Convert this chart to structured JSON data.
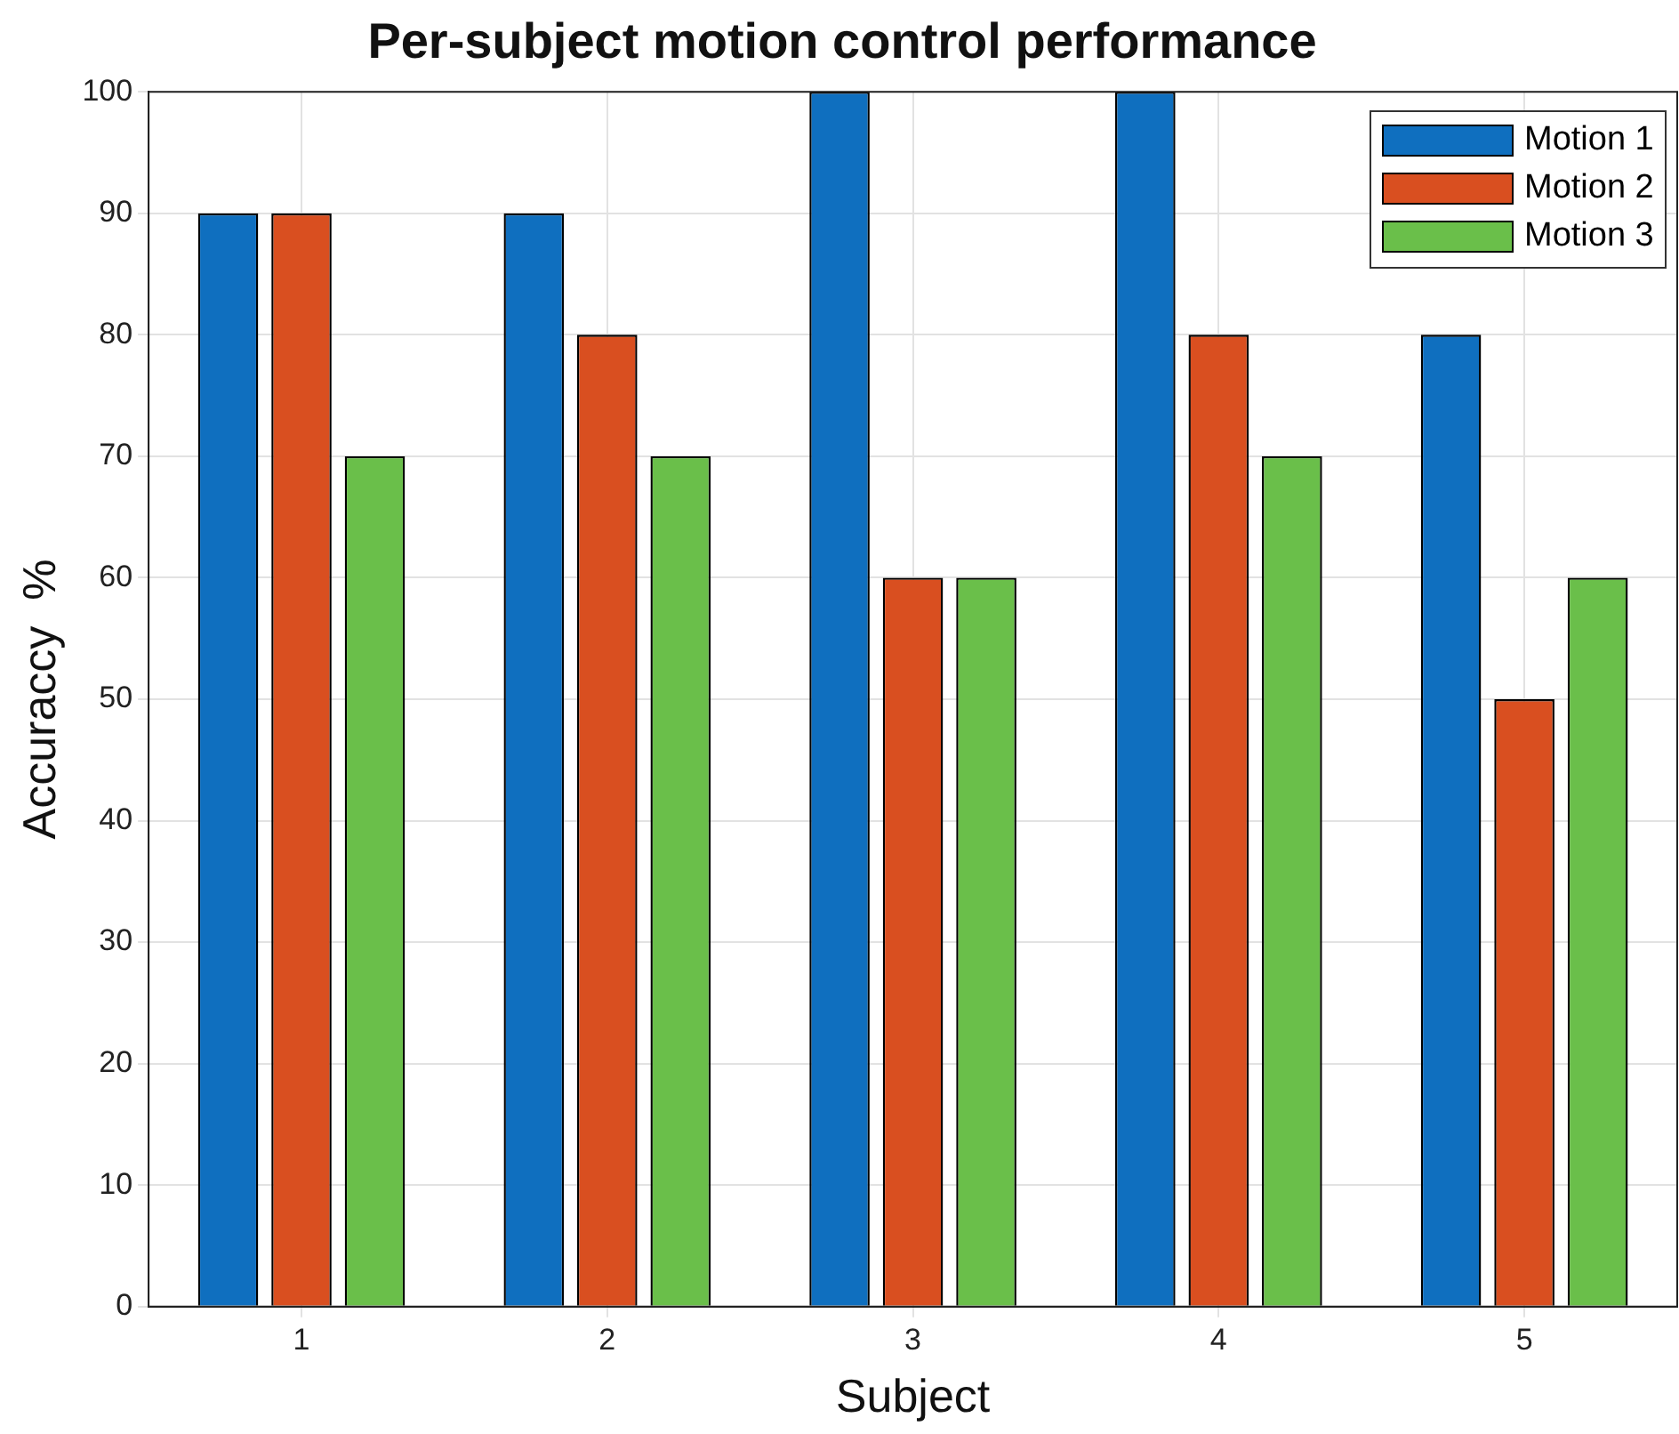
{
  "chart_data": {
    "type": "bar",
    "title": "Per-subject motion control performance",
    "xlabel": "Subject",
    "ylabel": "Accuraccy  %",
    "categories": [
      "1",
      "2",
      "3",
      "4",
      "5"
    ],
    "series": [
      {
        "name": "Motion 1",
        "color": "#0f6fbf",
        "values": [
          90,
          90,
          100,
          100,
          80
        ]
      },
      {
        "name": "Motion 2",
        "color": "#d94f20",
        "values": [
          90,
          80,
          60,
          80,
          50
        ]
      },
      {
        "name": "Motion 3",
        "color": "#6abf4a",
        "values": [
          70,
          70,
          60,
          70,
          60
        ]
      }
    ],
    "ylim": [
      0,
      100
    ],
    "yticks": [
      0,
      10,
      20,
      30,
      40,
      50,
      60,
      70,
      80,
      90,
      100
    ],
    "grid": true,
    "legend": "top right"
  }
}
